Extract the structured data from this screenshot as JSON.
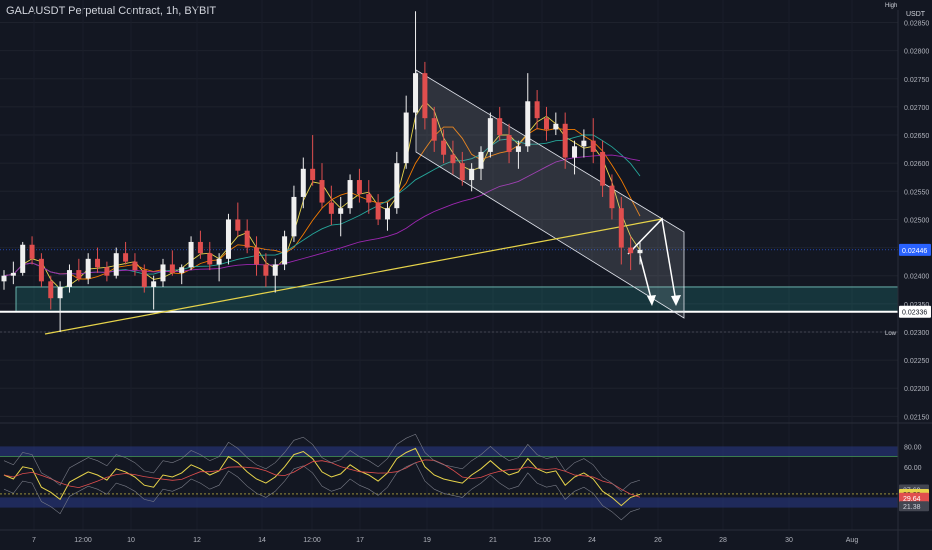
{
  "chart_title": "GALAUSDT Perpetual Contract, 1h, BYBIT",
  "currency_label": "USDT",
  "colors": {
    "background": "#131722",
    "up_candle": "#f0f0f0",
    "down_candle": "#e04e4e",
    "channel_fill": "#b2b5be",
    "support_zone": "#26a69a",
    "trendline": "#e6d34a",
    "rsi_line": "#e6d34a",
    "rsi_signal": "#e04e4e",
    "rsi_band": "#2a3a8a",
    "price_tag_current": "#2962ff"
  },
  "chart_data": [
    {
      "type": "candlestick",
      "y_ticks": [
        "0.02850",
        "0.02800",
        "0.02750",
        "0.02700",
        "0.02650",
        "0.02600",
        "0.02550",
        "0.02500",
        "0.02450",
        "0.02400",
        "0.02350",
        "0.02300",
        "0.02250",
        "0.02200",
        "0.02150"
      ],
      "ylim": [
        0.0214,
        0.0289
      ],
      "x_tick_labels": [
        "7",
        "12:00",
        "10",
        "12",
        "14",
        "12:00",
        "17",
        "19",
        "21",
        "12:00",
        "24",
        "26",
        "28",
        "30",
        "Aug"
      ],
      "price_tags": {
        "high_label": "High",
        "low_label": "Low",
        "current": "0.02446",
        "support": "0.02336",
        "low_value": "0.02300"
      },
      "overlays": {
        "descending_channel": true,
        "ascending_trendline": true,
        "support_zone": [
          "0.02336",
          "0.02380"
        ],
        "projection_arrows": 2
      },
      "candles": [
        [
          0.0239,
          0.0241,
          0.02375,
          0.024
        ],
        [
          0.024,
          0.02425,
          0.02385,
          0.02405
        ],
        [
          0.02405,
          0.0246,
          0.024,
          0.02455
        ],
        [
          0.02455,
          0.0247,
          0.0242,
          0.0243
        ],
        [
          0.0243,
          0.0244,
          0.0238,
          0.0239
        ],
        [
          0.0239,
          0.024,
          0.0234,
          0.0236
        ],
        [
          0.0236,
          0.0239,
          0.023,
          0.0238
        ],
        [
          0.0238,
          0.0242,
          0.0237,
          0.0241
        ],
        [
          0.0241,
          0.0243,
          0.0239,
          0.02395
        ],
        [
          0.02395,
          0.0244,
          0.02385,
          0.0243
        ],
        [
          0.0243,
          0.0245,
          0.02405,
          0.02415
        ],
        [
          0.02415,
          0.02425,
          0.0239,
          0.024
        ],
        [
          0.024,
          0.0245,
          0.02395,
          0.0244
        ],
        [
          0.0244,
          0.0246,
          0.0242,
          0.02425
        ],
        [
          0.02425,
          0.0244,
          0.024,
          0.0241
        ],
        [
          0.0241,
          0.0242,
          0.0237,
          0.0238
        ],
        [
          0.0238,
          0.024,
          0.0234,
          0.0239
        ],
        [
          0.0239,
          0.0243,
          0.0238,
          0.0242
        ],
        [
          0.0242,
          0.02445,
          0.024,
          0.02405
        ],
        [
          0.02405,
          0.0242,
          0.02385,
          0.02415
        ],
        [
          0.02415,
          0.0247,
          0.0241,
          0.0246
        ],
        [
          0.0246,
          0.0248,
          0.0243,
          0.0244
        ],
        [
          0.0244,
          0.0246,
          0.0241,
          0.0242
        ],
        [
          0.0242,
          0.0244,
          0.0239,
          0.0243
        ],
        [
          0.0243,
          0.0251,
          0.0242,
          0.025
        ],
        [
          0.025,
          0.0253,
          0.0247,
          0.0248
        ],
        [
          0.0248,
          0.025,
          0.0244,
          0.0245
        ],
        [
          0.0245,
          0.0247,
          0.024,
          0.0242
        ],
        [
          0.0242,
          0.0244,
          0.0238,
          0.024
        ],
        [
          0.024,
          0.0243,
          0.0237,
          0.0242
        ],
        [
          0.0242,
          0.0248,
          0.0241,
          0.0247
        ],
        [
          0.0247,
          0.0256,
          0.0246,
          0.0254
        ],
        [
          0.0254,
          0.0261,
          0.0252,
          0.0259
        ],
        [
          0.0259,
          0.0265,
          0.0256,
          0.0257
        ],
        [
          0.0257,
          0.026,
          0.0252,
          0.0253
        ],
        [
          0.0253,
          0.0256,
          0.0249,
          0.0251
        ],
        [
          0.0251,
          0.0254,
          0.0247,
          0.0252
        ],
        [
          0.0252,
          0.0258,
          0.0251,
          0.0257
        ],
        [
          0.0257,
          0.0259,
          0.0253,
          0.02545
        ],
        [
          0.02545,
          0.0257,
          0.0251,
          0.0253
        ],
        [
          0.0253,
          0.02545,
          0.0249,
          0.025
        ],
        [
          0.025,
          0.0253,
          0.0248,
          0.0252
        ],
        [
          0.0252,
          0.0262,
          0.0251,
          0.026
        ],
        [
          0.026,
          0.0272,
          0.0259,
          0.0269
        ],
        [
          0.0269,
          0.0287,
          0.0266,
          0.0276
        ],
        [
          0.0276,
          0.0278,
          0.0266,
          0.0268
        ],
        [
          0.0268,
          0.027,
          0.0262,
          0.0264
        ],
        [
          0.0264,
          0.0266,
          0.026,
          0.02615
        ],
        [
          0.02615,
          0.0264,
          0.0258,
          0.026
        ],
        [
          0.026,
          0.0262,
          0.0256,
          0.0257
        ],
        [
          0.0257,
          0.026,
          0.0255,
          0.0259
        ],
        [
          0.0259,
          0.0263,
          0.0257,
          0.0262
        ],
        [
          0.0262,
          0.0269,
          0.0261,
          0.0268
        ],
        [
          0.0268,
          0.027,
          0.0264,
          0.0265
        ],
        [
          0.0265,
          0.0267,
          0.026,
          0.0262
        ],
        [
          0.0262,
          0.0264,
          0.0259,
          0.0263
        ],
        [
          0.0263,
          0.0276,
          0.0262,
          0.0271
        ],
        [
          0.0271,
          0.0273,
          0.0266,
          0.0268
        ],
        [
          0.0268,
          0.027,
          0.0264,
          0.0266
        ],
        [
          0.0266,
          0.0269,
          0.0265,
          0.0267
        ],
        [
          0.0267,
          0.0269,
          0.0259,
          0.0261
        ],
        [
          0.0261,
          0.0264,
          0.0258,
          0.0263
        ],
        [
          0.0263,
          0.0266,
          0.0261,
          0.0264
        ],
        [
          0.0264,
          0.0268,
          0.026,
          0.0262
        ],
        [
          0.0262,
          0.0264,
          0.0254,
          0.0256
        ],
        [
          0.0256,
          0.0258,
          0.025,
          0.0252
        ],
        [
          0.0252,
          0.0254,
          0.0242,
          0.0245
        ],
        [
          0.0245,
          0.0247,
          0.0241,
          0.0244
        ],
        [
          0.0244,
          0.0246,
          0.0242,
          0.02446
        ]
      ],
      "rsi": {
        "levels": [
          "80.00",
          "60.00"
        ],
        "tags": [
          "37.69",
          "33.39",
          "29.64",
          "21.38"
        ],
        "values": [
          52,
          48,
          60,
          58,
          40,
          35,
          28,
          45,
          50,
          55,
          52,
          47,
          58,
          55,
          50,
          42,
          40,
          52,
          50,
          54,
          62,
          58,
          52,
          56,
          70,
          64,
          55,
          48,
          44,
          50,
          60,
          72,
          75,
          68,
          55,
          50,
          53,
          62,
          56,
          52,
          46,
          54,
          68,
          74,
          78,
          60,
          52,
          48,
          46,
          44,
          52,
          58,
          66,
          58,
          52,
          55,
          68,
          58,
          54,
          56,
          42,
          50,
          54,
          48,
          36,
          30,
          22,
          30,
          33
        ]
      }
    }
  ]
}
